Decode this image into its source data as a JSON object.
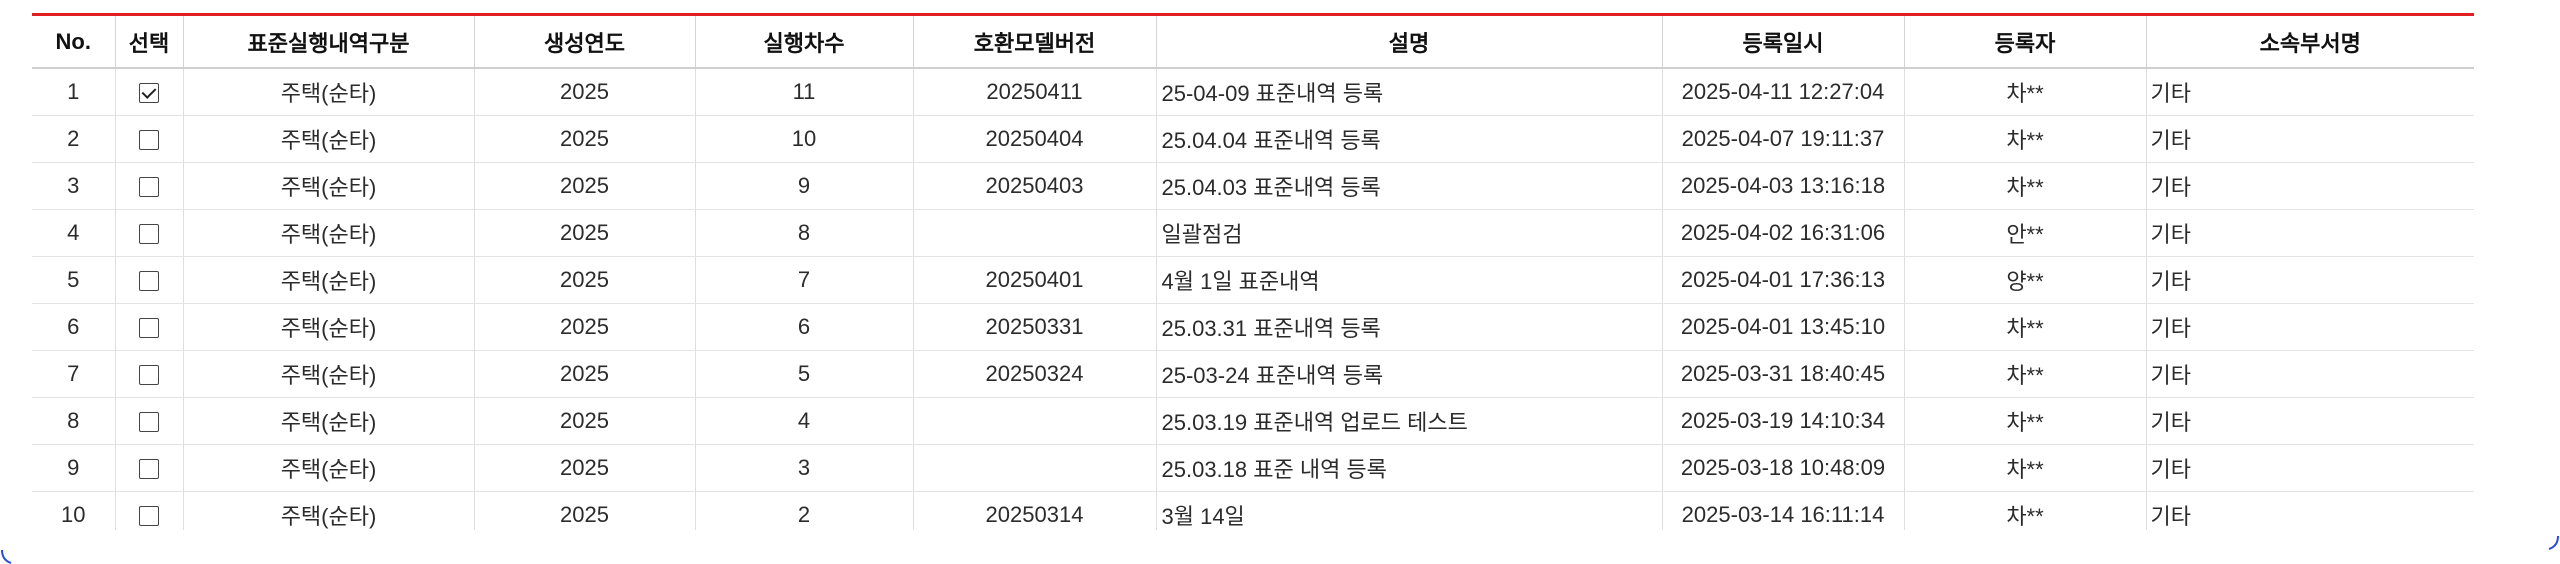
{
  "table": {
    "headers": {
      "no": "No.",
      "select": "선택",
      "category": "표준실행내역구분",
      "year": "생성연도",
      "round": "실행차수",
      "model_version": "호환모델버전",
      "description": "설명",
      "registered_at": "등록일시",
      "registrant": "등록자",
      "department": "소속부서명"
    },
    "rows": [
      {
        "no": "1",
        "selected": true,
        "category": "주택(순타)",
        "year": "2025",
        "round": "11",
        "model_version": "20250411",
        "description": "25-04-09 표준내역 등록",
        "registered_at": "2025-04-11 12:27:04",
        "registrant": "차**",
        "department": "기타"
      },
      {
        "no": "2",
        "selected": false,
        "category": "주택(순타)",
        "year": "2025",
        "round": "10",
        "model_version": "20250404",
        "description": "25.04.04 표준내역 등록",
        "registered_at": "2025-04-07 19:11:37",
        "registrant": "차**",
        "department": "기타"
      },
      {
        "no": "3",
        "selected": false,
        "category": "주택(순타)",
        "year": "2025",
        "round": "9",
        "model_version": "20250403",
        "description": "25.04.03 표준내역 등록",
        "registered_at": "2025-04-03 13:16:18",
        "registrant": "차**",
        "department": "기타"
      },
      {
        "no": "4",
        "selected": false,
        "category": "주택(순타)",
        "year": "2025",
        "round": "8",
        "model_version": "",
        "description": "일괄점검",
        "registered_at": "2025-04-02 16:31:06",
        "registrant": "안**",
        "department": "기타"
      },
      {
        "no": "5",
        "selected": false,
        "category": "주택(순타)",
        "year": "2025",
        "round": "7",
        "model_version": "20250401",
        "description": "4월 1일 표준내역",
        "registered_at": "2025-04-01 17:36:13",
        "registrant": "양**",
        "department": "기타"
      },
      {
        "no": "6",
        "selected": false,
        "category": "주택(순타)",
        "year": "2025",
        "round": "6",
        "model_version": "20250331",
        "description": "25.03.31 표준내역 등록",
        "registered_at": "2025-04-01 13:45:10",
        "registrant": "차**",
        "department": "기타"
      },
      {
        "no": "7",
        "selected": false,
        "category": "주택(순타)",
        "year": "2025",
        "round": "5",
        "model_version": "20250324",
        "description": "25-03-24 표준내역 등록",
        "registered_at": "2025-03-31 18:40:45",
        "registrant": "차**",
        "department": "기타"
      },
      {
        "no": "8",
        "selected": false,
        "category": "주택(순타)",
        "year": "2025",
        "round": "4",
        "model_version": "",
        "description": "25.03.19 표준내역 업로드 테스트",
        "registered_at": "2025-03-19 14:10:34",
        "registrant": "차**",
        "department": "기타"
      },
      {
        "no": "9",
        "selected": false,
        "category": "주택(순타)",
        "year": "2025",
        "round": "3",
        "model_version": "",
        "description": "25.03.18 표준 내역 등록",
        "registered_at": "2025-03-18 10:48:09",
        "registrant": "차**",
        "department": "기타"
      },
      {
        "no": "10",
        "selected": false,
        "category": "주택(순타)",
        "year": "2025",
        "round": "2",
        "model_version": "20250314",
        "description": "3월 14일",
        "registered_at": "2025-03-14 16:11:14",
        "registrant": "차**",
        "department": "기타"
      }
    ]
  },
  "colors": {
    "top_border": "#e02020",
    "corner_accent": "#2a4fd6"
  }
}
